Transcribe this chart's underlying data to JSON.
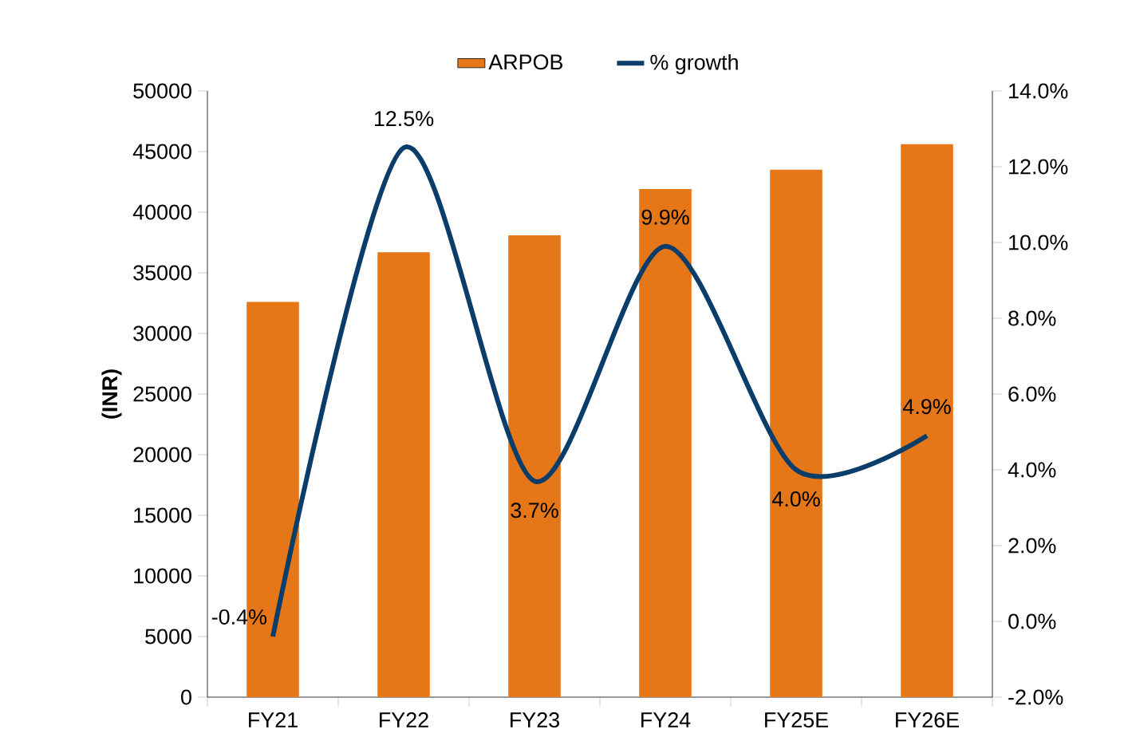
{
  "chart_data": {
    "type": "bar",
    "ylabel": "(INR)",
    "categories": [
      "FY21",
      "FY22",
      "FY23",
      "FY24",
      "FY25E",
      "FY26E"
    ],
    "series": [
      {
        "name": "ARPOB",
        "color": "#e57718",
        "values": [
          32600,
          36700,
          38100,
          41900,
          43500,
          45600
        ]
      },
      {
        "name": "% growth",
        "type": "line",
        "axis": "y2",
        "color": "#0b3d6b",
        "values": [
          -0.4,
          12.5,
          3.7,
          9.9,
          4.0,
          4.9
        ],
        "value_labels": [
          "-0.4%",
          "12.5%",
          "3.7%",
          "9.9%",
          "4.0%",
          "4.9%"
        ]
      }
    ],
    "ylim": [
      0,
      50000
    ],
    "yticks": [
      0,
      5000,
      10000,
      15000,
      20000,
      25000,
      30000,
      35000,
      40000,
      45000,
      50000
    ],
    "y2lim": [
      -2,
      14
    ],
    "y2ticks": [
      {
        "value": -2,
        "label": "-2.0%"
      },
      {
        "value": 0,
        "label": "0.0%"
      },
      {
        "value": 2,
        "label": "2.0%"
      },
      {
        "value": 4,
        "label": "4.0%"
      },
      {
        "value": 6,
        "label": "6.0%"
      },
      {
        "value": 8,
        "label": "8.0%"
      },
      {
        "value": 10,
        "label": "10.0%"
      },
      {
        "value": 12,
        "label": "12.0%"
      },
      {
        "value": 14,
        "label": "14.0%"
      }
    ],
    "legend": "top",
    "grid": false
  }
}
